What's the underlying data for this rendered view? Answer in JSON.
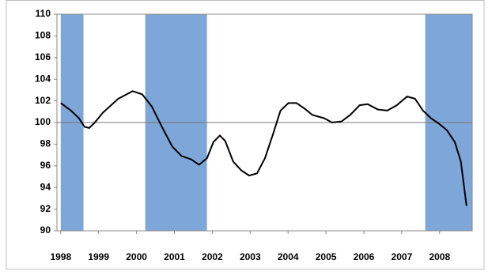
{
  "chart_data": {
    "type": "line",
    "x": [
      1998.0,
      1998.27,
      1998.48,
      1998.63,
      1998.75,
      1998.9,
      1999.11,
      1999.52,
      1999.9,
      2000.15,
      2000.4,
      2000.67,
      2000.94,
      2001.19,
      2001.44,
      2001.65,
      2001.86,
      2002.03,
      2002.2,
      2002.34,
      2002.55,
      2002.76,
      2002.97,
      2003.18,
      2003.39,
      2003.6,
      2003.8,
      2004.01,
      2004.22,
      2004.43,
      2004.64,
      2004.95,
      2005.16,
      2005.41,
      2005.64,
      2005.89,
      2006.1,
      2006.37,
      2006.62,
      2006.87,
      2007.14,
      2007.35,
      2007.56,
      2007.77,
      2007.98,
      2008.19,
      2008.4,
      2008.56,
      2008.71
    ],
    "series": [
      {
        "color": "#000000",
        "values": [
          101.8,
          101.1,
          100.4,
          99.6,
          99.5,
          100.0,
          100.9,
          102.2,
          102.9,
          102.6,
          101.5,
          99.6,
          97.8,
          96.9,
          96.6,
          96.1,
          96.7,
          98.2,
          98.8,
          98.3,
          96.4,
          95.6,
          95.1,
          95.3,
          96.7,
          98.9,
          101.1,
          101.8,
          101.8,
          101.3,
          100.7,
          100.4,
          100.0,
          100.1,
          100.7,
          101.6,
          101.7,
          101.2,
          101.1,
          101.6,
          102.4,
          102.2,
          101.1,
          100.4,
          99.9,
          99.3,
          98.2,
          96.4,
          92.3
        ]
      }
    ],
    "xlim": [
      1997.9,
      2008.86
    ],
    "xticks": [
      1998,
      1999,
      2000,
      2001,
      2002,
      2003,
      2004,
      2005,
      2006,
      2007,
      2008
    ],
    "ylim": [
      90,
      110
    ],
    "yticks": [
      90,
      92,
      94,
      96,
      98,
      100,
      102,
      104,
      106,
      108,
      110
    ],
    "reference_line": 100,
    "shaded_periods": [
      [
        1998.0,
        1998.6
      ],
      [
        2000.23,
        2001.86
      ],
      [
        2007.62,
        2008.86
      ]
    ],
    "shade_color": "#7ea6d9"
  }
}
